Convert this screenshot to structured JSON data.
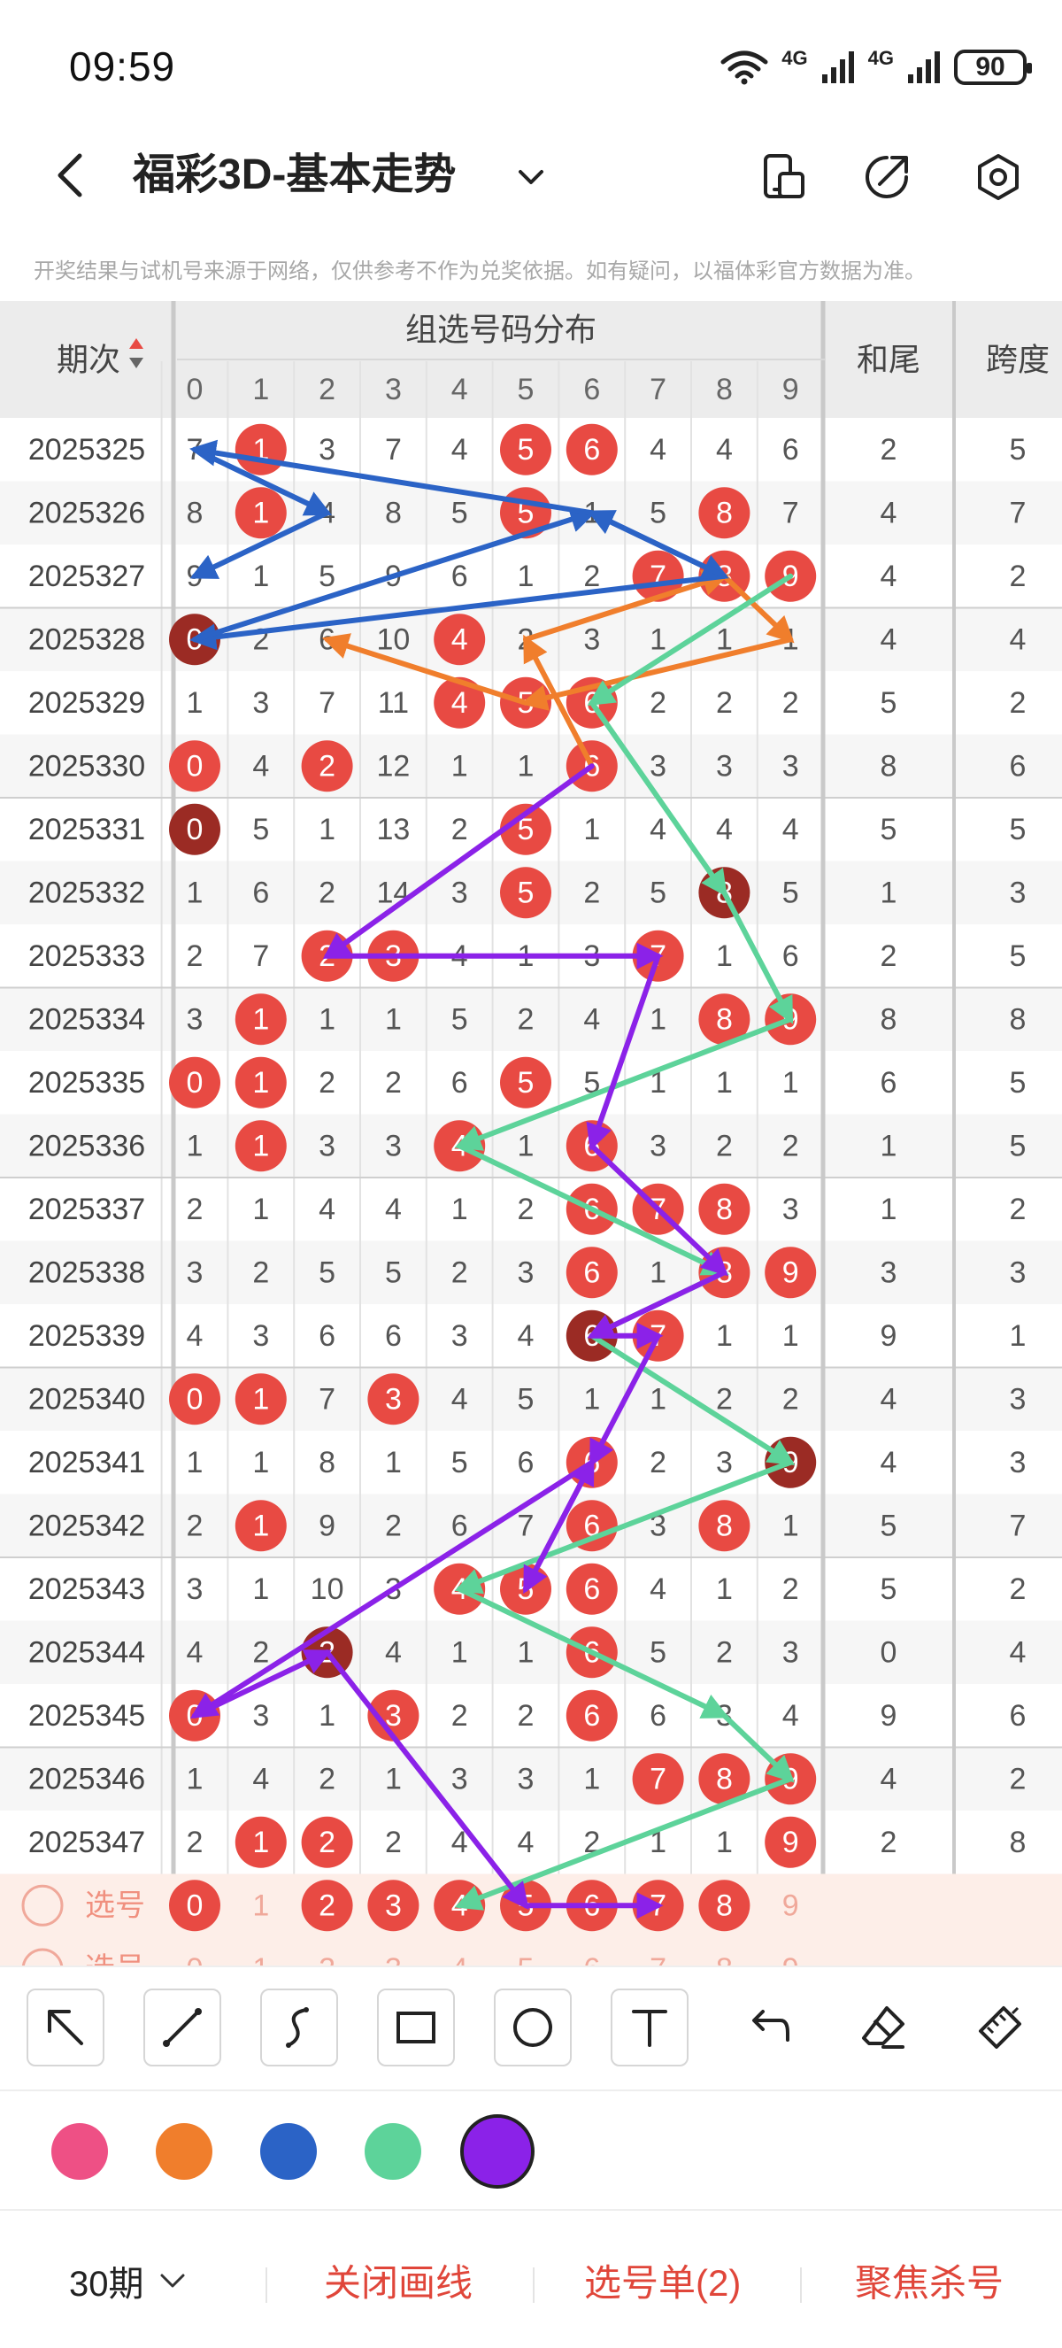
{
  "status": {
    "time": "09:59",
    "net1": "4G",
    "net2": "4G",
    "battery": "90"
  },
  "nav": {
    "title": "福彩3D-基本走势",
    "back_icon": "chevron-left-icon",
    "dropdown_icon": "chevron-down-icon",
    "icons": [
      "phone-layout-icon",
      "share-icon",
      "settings-icon"
    ]
  },
  "disclaimer": "开奖结果与试机号来源于网络，仅供参考不作为兑奖依据。如有疑问，以福体彩官方数据为准。",
  "table": {
    "period_header": "期次",
    "group_header": "组选号码分布",
    "digit_headers": [
      "0",
      "1",
      "2",
      "3",
      "4",
      "5",
      "6",
      "7",
      "8",
      "9"
    ],
    "sum_header": "和尾",
    "span_header": "跨度",
    "rows": [
      {
        "period": "2025325",
        "cells": [
          "7",
          "1",
          "3",
          "7",
          "4",
          "5",
          "6",
          "4",
          "4",
          "6"
        ],
        "hits": [
          1,
          5,
          6
        ],
        "sum": "2",
        "span": "5"
      },
      {
        "period": "2025326",
        "cells": [
          "8",
          "1",
          "4",
          "8",
          "5",
          "5",
          "1",
          "5",
          "8",
          "7"
        ],
        "hits": [
          1,
          5,
          8
        ],
        "sum": "4",
        "span": "7"
      },
      {
        "period": "2025327",
        "cells": [
          "9",
          "1",
          "5",
          "9",
          "6",
          "1",
          "2",
          "7",
          "8",
          "9"
        ],
        "hits": [
          7,
          8,
          9
        ],
        "sum": "4",
        "span": "2"
      },
      {
        "period": "2025328",
        "cells": [
          "0",
          "2",
          "6",
          "10",
          "4",
          "2",
          "3",
          "1",
          "1",
          "1"
        ],
        "hits": [
          0,
          4
        ],
        "double": [
          0
        ],
        "sum": "4",
        "span": "4"
      },
      {
        "period": "2025329",
        "cells": [
          "1",
          "3",
          "7",
          "11",
          "4",
          "5",
          "6",
          "2",
          "2",
          "2"
        ],
        "hits": [
          4,
          5,
          6
        ],
        "sum": "5",
        "span": "2"
      },
      {
        "period": "2025330",
        "cells": [
          "0",
          "4",
          "2",
          "12",
          "1",
          "1",
          "6",
          "3",
          "3",
          "3"
        ],
        "hits": [
          0,
          2,
          6
        ],
        "sum": "8",
        "span": "6"
      },
      {
        "period": "2025331",
        "cells": [
          "0",
          "5",
          "1",
          "13",
          "2",
          "5",
          "1",
          "4",
          "4",
          "4"
        ],
        "hits": [
          0,
          5
        ],
        "double": [
          0
        ],
        "sum": "5",
        "span": "5"
      },
      {
        "period": "2025332",
        "cells": [
          "1",
          "6",
          "2",
          "14",
          "3",
          "5",
          "2",
          "5",
          "8",
          "5"
        ],
        "hits": [
          5,
          8
        ],
        "double": [
          8
        ],
        "sum": "1",
        "span": "3"
      },
      {
        "period": "2025333",
        "cells": [
          "2",
          "7",
          "2",
          "3",
          "4",
          "1",
          "3",
          "7",
          "1",
          "6"
        ],
        "hits": [
          2,
          3,
          7
        ],
        "sum": "2",
        "span": "5"
      },
      {
        "period": "2025334",
        "cells": [
          "3",
          "1",
          "1",
          "1",
          "5",
          "2",
          "4",
          "1",
          "8",
          "9"
        ],
        "hits": [
          1,
          8,
          9
        ],
        "sum": "8",
        "span": "8"
      },
      {
        "period": "2025335",
        "cells": [
          "0",
          "1",
          "2",
          "2",
          "6",
          "5",
          "5",
          "1",
          "1",
          "1"
        ],
        "hits": [
          0,
          1,
          5
        ],
        "sum": "6",
        "span": "5"
      },
      {
        "period": "2025336",
        "cells": [
          "1",
          "1",
          "3",
          "3",
          "4",
          "1",
          "6",
          "3",
          "2",
          "2"
        ],
        "hits": [
          1,
          4,
          6
        ],
        "sum": "1",
        "span": "5"
      },
      {
        "period": "2025337",
        "cells": [
          "2",
          "1",
          "4",
          "4",
          "1",
          "2",
          "6",
          "7",
          "8",
          "3"
        ],
        "hits": [
          6,
          7,
          8
        ],
        "sum": "1",
        "span": "2"
      },
      {
        "period": "2025338",
        "cells": [
          "3",
          "2",
          "5",
          "5",
          "2",
          "3",
          "6",
          "1",
          "8",
          "9"
        ],
        "hits": [
          6,
          8,
          9
        ],
        "sum": "3",
        "span": "3"
      },
      {
        "period": "2025339",
        "cells": [
          "4",
          "3",
          "6",
          "6",
          "3",
          "4",
          "6",
          "7",
          "1",
          "1"
        ],
        "hits": [
          6,
          7
        ],
        "double": [
          6
        ],
        "sum": "9",
        "span": "1"
      },
      {
        "period": "2025340",
        "cells": [
          "0",
          "1",
          "7",
          "3",
          "4",
          "5",
          "1",
          "1",
          "2",
          "2"
        ],
        "hits": [
          0,
          1,
          3
        ],
        "sum": "4",
        "span": "3"
      },
      {
        "period": "2025341",
        "cells": [
          "1",
          "1",
          "8",
          "1",
          "5",
          "6",
          "6",
          "2",
          "3",
          "9"
        ],
        "hits": [
          6,
          9
        ],
        "double": [
          9
        ],
        "sum": "4",
        "span": "3"
      },
      {
        "period": "2025342",
        "cells": [
          "2",
          "1",
          "9",
          "2",
          "6",
          "7",
          "6",
          "3",
          "8",
          "1"
        ],
        "hits": [
          1,
          6,
          8
        ],
        "sum": "5",
        "span": "7"
      },
      {
        "period": "2025343",
        "cells": [
          "3",
          "1",
          "10",
          "3",
          "4",
          "5",
          "6",
          "4",
          "1",
          "2"
        ],
        "hits": [
          4,
          5,
          6
        ],
        "sum": "5",
        "span": "2"
      },
      {
        "period": "2025344",
        "cells": [
          "4",
          "2",
          "2",
          "4",
          "1",
          "1",
          "6",
          "5",
          "2",
          "3"
        ],
        "hits": [
          2,
          6
        ],
        "double": [
          2
        ],
        "sum": "0",
        "span": "4"
      },
      {
        "period": "2025345",
        "cells": [
          "0",
          "3",
          "1",
          "3",
          "2",
          "2",
          "6",
          "6",
          "3",
          "4"
        ],
        "hits": [
          0,
          3,
          6
        ],
        "sum": "9",
        "span": "6"
      },
      {
        "period": "2025346",
        "cells": [
          "1",
          "4",
          "2",
          "1",
          "3",
          "3",
          "1",
          "7",
          "8",
          "9"
        ],
        "hits": [
          7,
          8,
          9
        ],
        "sum": "4",
        "span": "2"
      },
      {
        "period": "2025347",
        "cells": [
          "2",
          "1",
          "2",
          "2",
          "4",
          "4",
          "2",
          "1",
          "1",
          "9"
        ],
        "hits": [
          1,
          2,
          9
        ],
        "sum": "2",
        "span": "8"
      }
    ],
    "select_label": "选号",
    "select_row": {
      "cells": [
        "0",
        "1",
        "2",
        "3",
        "4",
        "5",
        "6",
        "7",
        "8",
        "9"
      ],
      "selected": [
        0,
        2,
        3,
        4,
        5,
        6,
        7,
        8
      ]
    },
    "select_label_2": "选号",
    "colors": {
      "ball": "#e84a43",
      "ball_dark": "#9b2b24",
      "header_bg": "#ececec",
      "select_bg": "#fdeee8"
    }
  },
  "toolbar": {
    "tools": [
      "arrow-tool-icon",
      "line-tool-icon",
      "curve-tool-icon",
      "rect-tool-icon",
      "circle-tool-icon",
      "text-tool-icon",
      "undo-icon",
      "eraser-icon",
      "clear-icon"
    ]
  },
  "palette": {
    "colors": [
      "#ee5085",
      "#f07e2c",
      "#2b63c6",
      "#5dd39a",
      "#8b22e8"
    ],
    "selected": 4
  },
  "bottom": {
    "period": "30期",
    "close_lines": "关闭画线",
    "pick_list": "选号单(2)",
    "focus_kill": "聚焦杀号"
  }
}
